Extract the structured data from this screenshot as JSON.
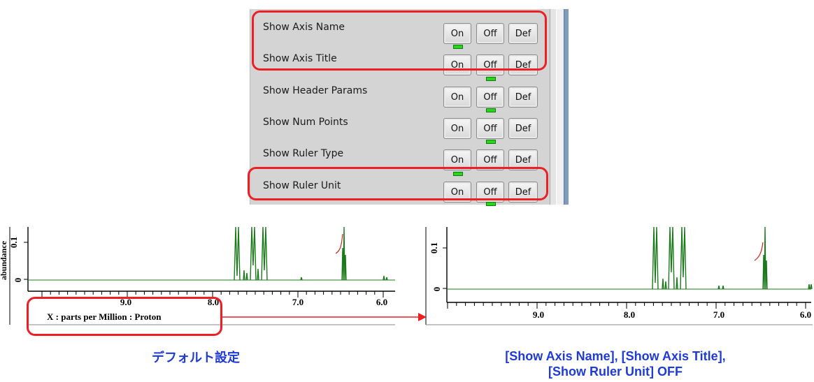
{
  "panel": {
    "rows": [
      {
        "label": "Show Axis Name"
      },
      {
        "label": "Show Axis Title"
      },
      {
        "label": "Show Header Params"
      },
      {
        "label": "Show Num Points"
      },
      {
        "label": "Show Ruler Type"
      },
      {
        "label": "Show Ruler Unit"
      }
    ],
    "on_label": "On",
    "off_label": "Off",
    "def_label": "Def"
  },
  "spectrum_left": {
    "ylabel": "abundance",
    "yticks": [
      "0.1",
      "0"
    ],
    "xticks": [
      "9.0",
      "8.0",
      "7.0",
      "6.0"
    ],
    "xtitle": "X : parts per Million : Proton"
  },
  "spectrum_right": {
    "yticks": [
      "0.1",
      "0"
    ],
    "xticks": [
      "9.0",
      "8.0",
      "7.0",
      "6.0"
    ]
  },
  "captions": {
    "left": "デフォルト設定",
    "right_line1": "[Show Axis Name], [Show Axis Title],",
    "right_line2": "[Show Ruler Unit] OFF"
  },
  "colors": {
    "highlight": "#ec1f24",
    "spectrum": "#1b7a1b",
    "integral": "#d42020",
    "caption": "#1f3bd6",
    "led": "#29d61e"
  }
}
